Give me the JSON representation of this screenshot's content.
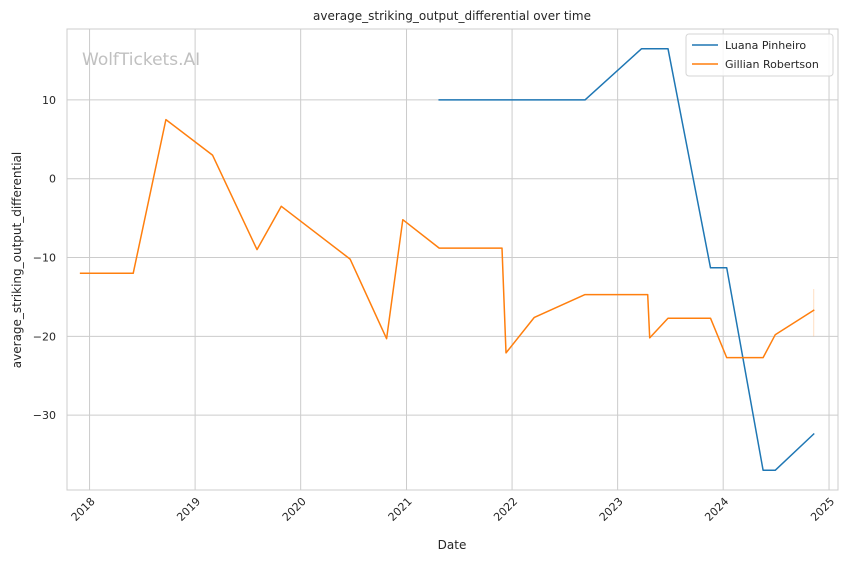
{
  "chart_data": {
    "type": "line",
    "title": "average_striking_output_differential over time",
    "xlabel": "Date",
    "ylabel": "average_striking_output_differential",
    "watermark": "WolfTickets.AI",
    "x_ticks": [
      "2018",
      "2019",
      "2020",
      "2021",
      "2022",
      "2023",
      "2024",
      "2025"
    ],
    "y_ticks": [
      10,
      0,
      -10,
      -20,
      -30
    ],
    "y_tick_labels": [
      "10",
      "0",
      "−10",
      "−20",
      "−30"
    ],
    "xlim": [
      "2017-10-15",
      "2025-02-01"
    ],
    "ylim": [
      -39.5,
      19
    ],
    "grid": true,
    "legend_position": "top-right",
    "series": [
      {
        "name": "Luana Pinheiro",
        "color": "#1f77b4",
        "points": [
          [
            "2021-04-24",
            10.0
          ],
          [
            "2022-09-10",
            10.0
          ],
          [
            "2023-03-25",
            16.5
          ],
          [
            "2023-06-24",
            16.5
          ],
          [
            "2023-11-18",
            -11.3
          ],
          [
            "2024-01-13",
            -11.3
          ],
          [
            "2024-05-18",
            -37.0
          ],
          [
            "2024-06-29",
            -37.0
          ],
          [
            "2024-11-09",
            -32.4
          ]
        ]
      },
      {
        "name": "Gillian Robertson",
        "color": "#ff7f0e",
        "points": [
          [
            "2017-12-01",
            -12.0
          ],
          [
            "2018-06-01",
            -12.0
          ],
          [
            "2018-09-22",
            7.5
          ],
          [
            "2019-03-02",
            3.0
          ],
          [
            "2019-08-03",
            -9.0
          ],
          [
            "2019-10-26",
            -3.5
          ],
          [
            "2020-06-20",
            -10.2
          ],
          [
            "2020-10-24",
            -20.3
          ],
          [
            "2020-12-19",
            -5.2
          ],
          [
            "2021-04-24",
            -8.8
          ],
          [
            "2021-11-27",
            -8.8
          ],
          [
            "2021-12-11",
            -22.1
          ],
          [
            "2022-03-19",
            -17.6
          ],
          [
            "2022-09-10",
            -14.7
          ],
          [
            "2023-04-15",
            -14.7
          ],
          [
            "2023-04-22",
            -20.2
          ],
          [
            "2023-06-24",
            -17.7
          ],
          [
            "2023-11-18",
            -17.7
          ],
          [
            "2024-01-13",
            -22.7
          ],
          [
            "2024-05-18",
            -22.7
          ],
          [
            "2024-06-29",
            -19.8
          ],
          [
            "2024-11-09",
            -16.7
          ]
        ]
      }
    ]
  }
}
